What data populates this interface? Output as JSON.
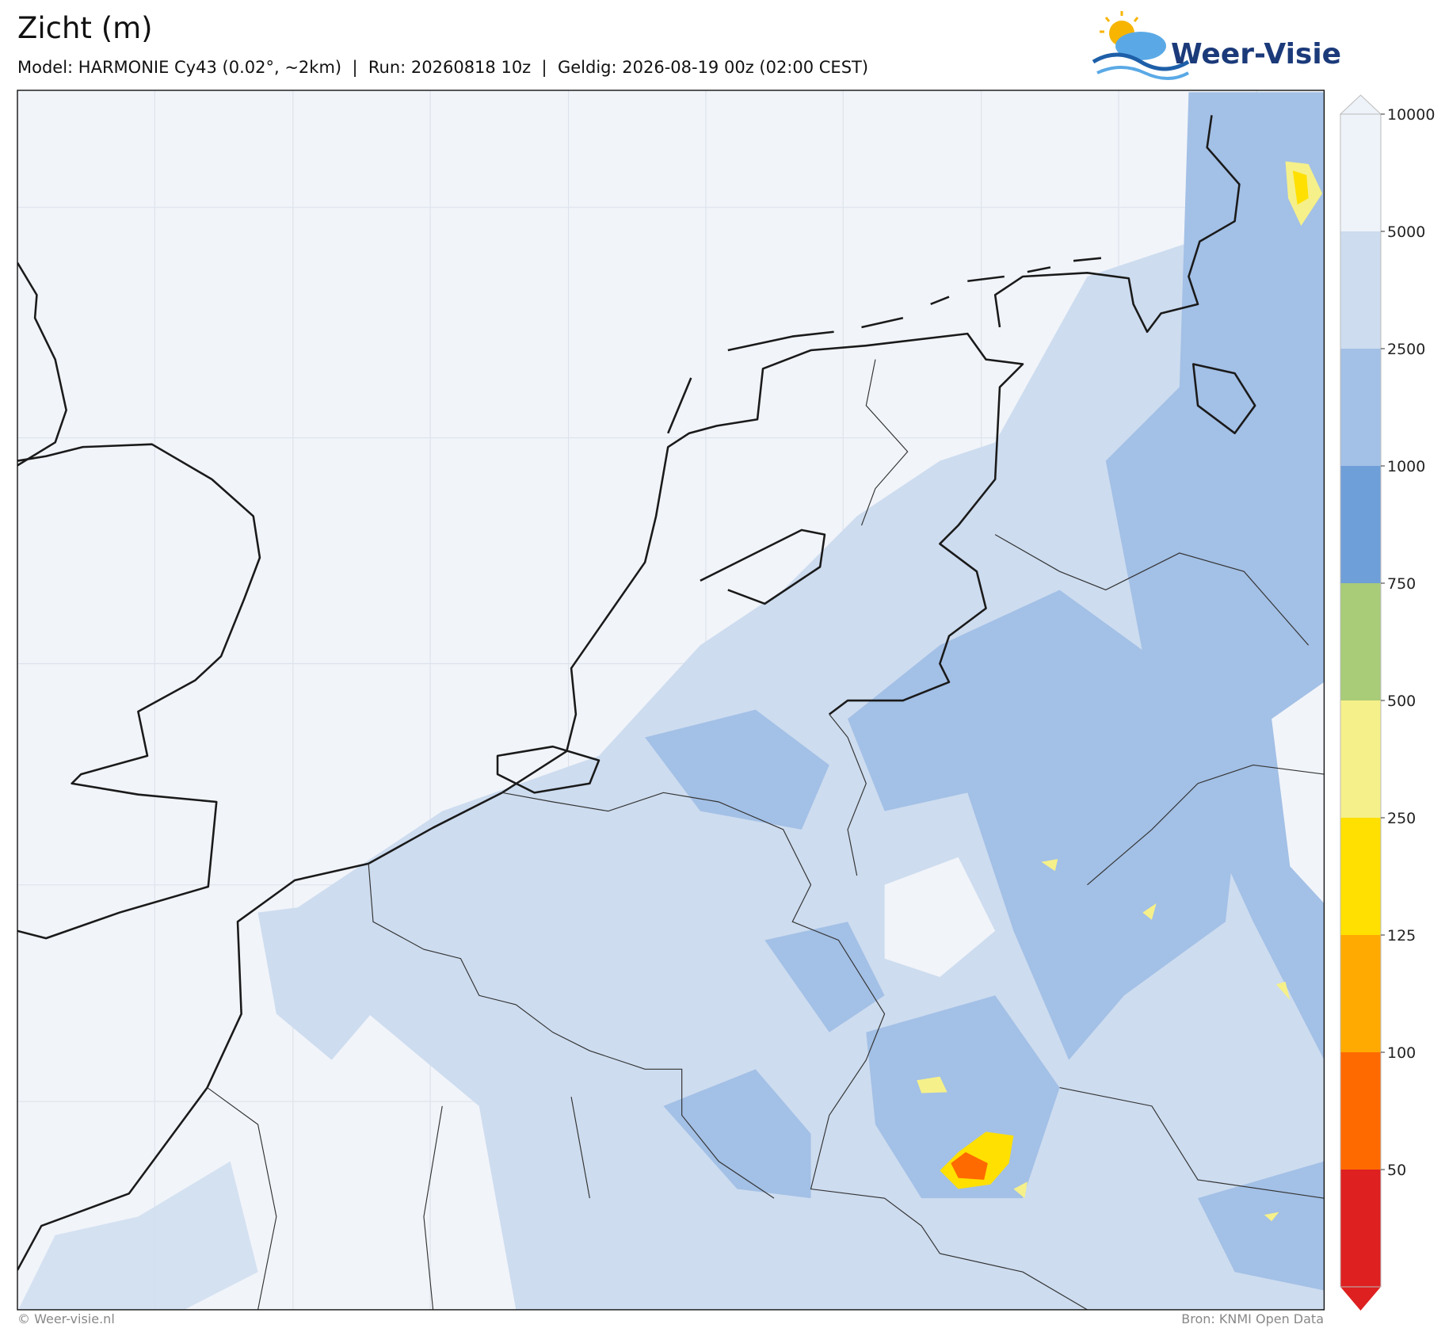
{
  "header": {
    "title": "Zicht (m)",
    "subtitle": "Model: HARMONIE Cy43 (0.02°, ~2km)  |  Run: 20260818 10z  |  Geldig: 2026-08-19 00z (02:00 CEST)"
  },
  "logo": {
    "text": "Weer-Visie"
  },
  "colorbar": {
    "ticks": [
      10000,
      5000,
      2500,
      1000,
      750,
      500,
      250,
      125,
      100,
      50
    ],
    "colors": [
      "#eef3fa",
      "#cddcef",
      "#a3c0e6",
      "#6f9fd8",
      "#a8cc78",
      "#f5f08a",
      "#ffe000",
      "#ffaa00",
      "#ff6a00",
      "#de2020"
    ]
  },
  "footer": {
    "left": "© Weer-visie.nl",
    "right": "Bron: KNMI Open Data"
  }
}
